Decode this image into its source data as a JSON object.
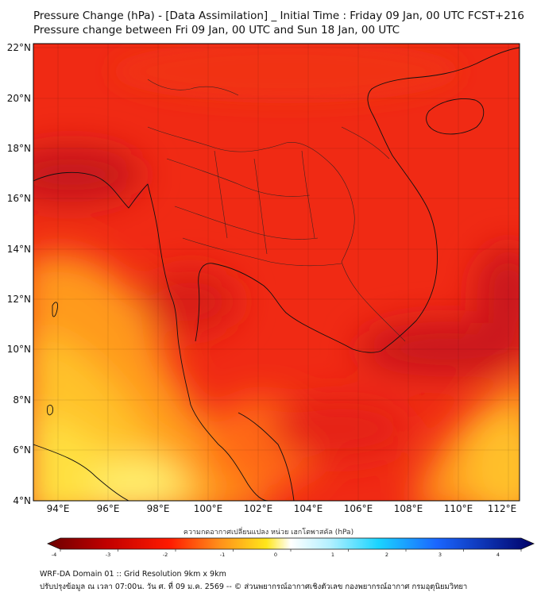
{
  "title": {
    "line1": "Pressure Change (hPa) - [Data Assimilation] _ Initial Time : Friday 09 Jan, 00 UTC FCST+216",
    "line2": "Pressure change between Fri 09 Jan, 00 UTC and Sun 18 Jan, 00 UTC"
  },
  "map": {
    "lat_labels": [
      "22°N",
      "20°N",
      "18°N",
      "16°N",
      "14°N",
      "12°N",
      "10°N",
      "8°N",
      "6°N",
      "4°N"
    ],
    "lon_labels": [
      "94°E",
      "96°E",
      "98°E",
      "100°E",
      "102°E",
      "104°E",
      "106°E",
      "108°E",
      "110°E",
      "112°E"
    ],
    "lat_range": [
      4,
      22
    ],
    "lon_range": [
      93,
      112.5
    ],
    "grid": true
  },
  "colorbar": {
    "title": "ความกดอากาศเปลี่ยนแปลง หน่วย เฮกโตพาสคัล (hPa)",
    "ticks": [
      "-4",
      "-3",
      "-2",
      "-1",
      "0",
      "1",
      "2",
      "3",
      "4"
    ],
    "range": [
      -4,
      4
    ],
    "colors": {
      "neg_dark": "#6b0000",
      "red": "#e8201a",
      "orange": "#ff8c1a",
      "yellow": "#ffe61a",
      "white": "#ffffff",
      "cyan": "#1ad4ff",
      "blue": "#1a4dff",
      "navy": "#000066"
    }
  },
  "footer": {
    "line1": "WRF-DA Domain 01 :: Grid Resolution 9km x 9km",
    "line2": "ปรับปรุงข้อมูล ณ เวลา 07:00น. วัน ศ. ที่ 09 ม.ค. 2569 -- © ส่วนพยากรณ์อากาศเชิงตัวเลข กองพยากรณ์อากาศ กรมอุตุนิยมวิทยา"
  }
}
